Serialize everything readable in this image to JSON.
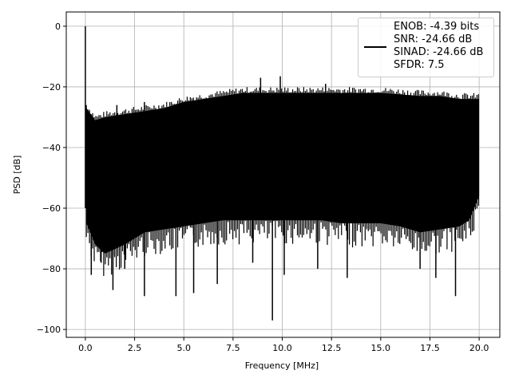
{
  "chart_data": {
    "type": "line",
    "title": "",
    "xlabel": "Frequency [MHz]",
    "ylabel": "PSD [dB]",
    "xlim": [
      -0.97,
      21.05
    ],
    "ylim": [
      -102.6,
      4.7
    ],
    "grid": true,
    "xticks": [
      0,
      2.5,
      5,
      7.5,
      10,
      12.5,
      15,
      17.5,
      20
    ],
    "xtick_labels": [
      "0.0",
      "2.5",
      "5.0",
      "7.5",
      "10.0",
      "12.5",
      "15.0",
      "17.5",
      "20.0"
    ],
    "yticks": [
      0,
      -20,
      -40,
      -60,
      -80,
      -100
    ],
    "ytick_labels": [
      "0",
      "−20",
      "−40",
      "−60",
      "−80",
      "−100"
    ],
    "legend": {
      "placement": "top-right",
      "entries": [
        "ENOB: -4.39 bits",
        "SNR: -24.66 dB",
        "SINAD: -24.66 dB",
        "SFDR: 7.5"
      ]
    },
    "series": [
      {
        "name": "PSD",
        "color": "#000000",
        "envelope_x": [
          0.05,
          0.5,
          1,
          2,
          3,
          4,
          5,
          6,
          7,
          8,
          9,
          10,
          11,
          12,
          13,
          14,
          15,
          16,
          17,
          18,
          19,
          19.5,
          20
        ],
        "envelope_upper": [
          -27,
          -31,
          -30,
          -29,
          -28,
          -27,
          -25,
          -24,
          -23,
          -22,
          -22,
          -22,
          -22,
          -22,
          -22,
          -22,
          -22,
          -22.5,
          -23,
          -23,
          -24,
          -24,
          -24
        ],
        "envelope_lower": [
          -65,
          -72,
          -75,
          -72,
          -68,
          -67,
          -66,
          -65,
          -64,
          -64,
          -64,
          -64,
          -64,
          -64,
          -65,
          -65,
          -65,
          -66,
          -68,
          -67,
          -66,
          -64,
          -56
        ],
        "peaks": [
          {
            "x": 0.0,
            "y": 0
          },
          {
            "x": 8.9,
            "y": -17
          },
          {
            "x": 9.9,
            "y": -16.5
          },
          {
            "x": 12.2,
            "y": -19
          },
          {
            "x": 1.6,
            "y": -26
          },
          {
            "x": 3.0,
            "y": -25
          }
        ],
        "dips": [
          {
            "x": 0.3,
            "y": -82
          },
          {
            "x": 0.8,
            "y": -78
          },
          {
            "x": 1.4,
            "y": -87
          },
          {
            "x": 2.0,
            "y": -80
          },
          {
            "x": 3.0,
            "y": -89
          },
          {
            "x": 4.6,
            "y": -89
          },
          {
            "x": 5.5,
            "y": -88
          },
          {
            "x": 6.7,
            "y": -85
          },
          {
            "x": 8.5,
            "y": -78
          },
          {
            "x": 9.5,
            "y": -97
          },
          {
            "x": 10.1,
            "y": -82
          },
          {
            "x": 11.8,
            "y": -80
          },
          {
            "x": 13.3,
            "y": -83
          },
          {
            "x": 17.0,
            "y": -80
          },
          {
            "x": 17.8,
            "y": -83
          },
          {
            "x": 18.8,
            "y": -89
          }
        ]
      }
    ]
  }
}
